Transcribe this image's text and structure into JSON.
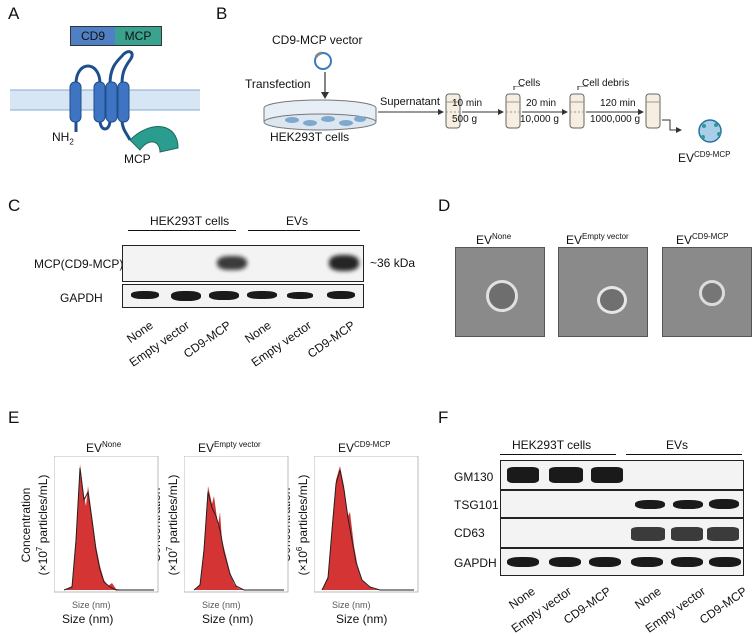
{
  "panels": {
    "a": "A",
    "b": "B",
    "c": "C",
    "d": "D",
    "e": "E",
    "f": "F"
  },
  "panel_a": {
    "construct_left": "CD9",
    "construct_right": "MCP",
    "nh2": "NH",
    "nh2_sub": "2",
    "mcp": "MCP"
  },
  "panel_b": {
    "vector": "CD9-MCP vector",
    "transfection": "Transfection",
    "cells_label": "HEK293T cells",
    "supernatant": "Supernatant",
    "step1_top": "10 min",
    "step1_bottom": "500 g",
    "step2_top": "20 min",
    "step2_bottom": "10,000 g",
    "step3_top": "120 min",
    "step3_bottom": "1000,000 g",
    "cells": "Cells",
    "debris": "Cell debris",
    "ev": "EV",
    "ev_sup": "CD9-MCP"
  },
  "panel_c": {
    "group1": "HEK293T cells",
    "group2": "EVs",
    "row1": "MCP(CD9-MCP)",
    "row2": "GAPDH",
    "kda": "~36 kDa",
    "lanes": [
      "None",
      "Empty vector",
      "CD9-MCP",
      "None",
      "Empty vector",
      "CD9-MCP"
    ]
  },
  "panel_d": {
    "ev": "EV",
    "labels": [
      "None",
      "Empty vector",
      "CD9-MCP"
    ]
  },
  "panel_e": {
    "ev": "EV",
    "plots": [
      {
        "sup": "None",
        "ylabel": "Concentration",
        "yunit": "(×10",
        "yexp": "7",
        "yrest": " particles/mL)",
        "xlabel": "Size (nm)"
      },
      {
        "sup": "Empty vector",
        "ylabel": "Concentration",
        "yunit": "(×10",
        "yexp": "7",
        "yrest": " particles/mL)",
        "xlabel": "Size (nm)"
      },
      {
        "sup": "CD9-MCP",
        "ylabel": "Concentration",
        "yunit": "(×10",
        "yexp": "6",
        "yrest": " particles/mL)",
        "xlabel": "Size (nm)"
      }
    ]
  },
  "panel_f": {
    "group1": "HEK293T cells",
    "group2": "EVs",
    "rows": [
      "GM130",
      "TSG101",
      "CD63",
      "GAPDH"
    ],
    "lanes": [
      "None",
      "Empty vector",
      "CD9-MCP",
      "None",
      "Empty vector",
      "CD9-MCP"
    ]
  },
  "colors": {
    "cd9": "#4472c4",
    "mcp": "#2a9d8f",
    "membrane": "#d6e6f5",
    "curve": "#cc1111"
  }
}
